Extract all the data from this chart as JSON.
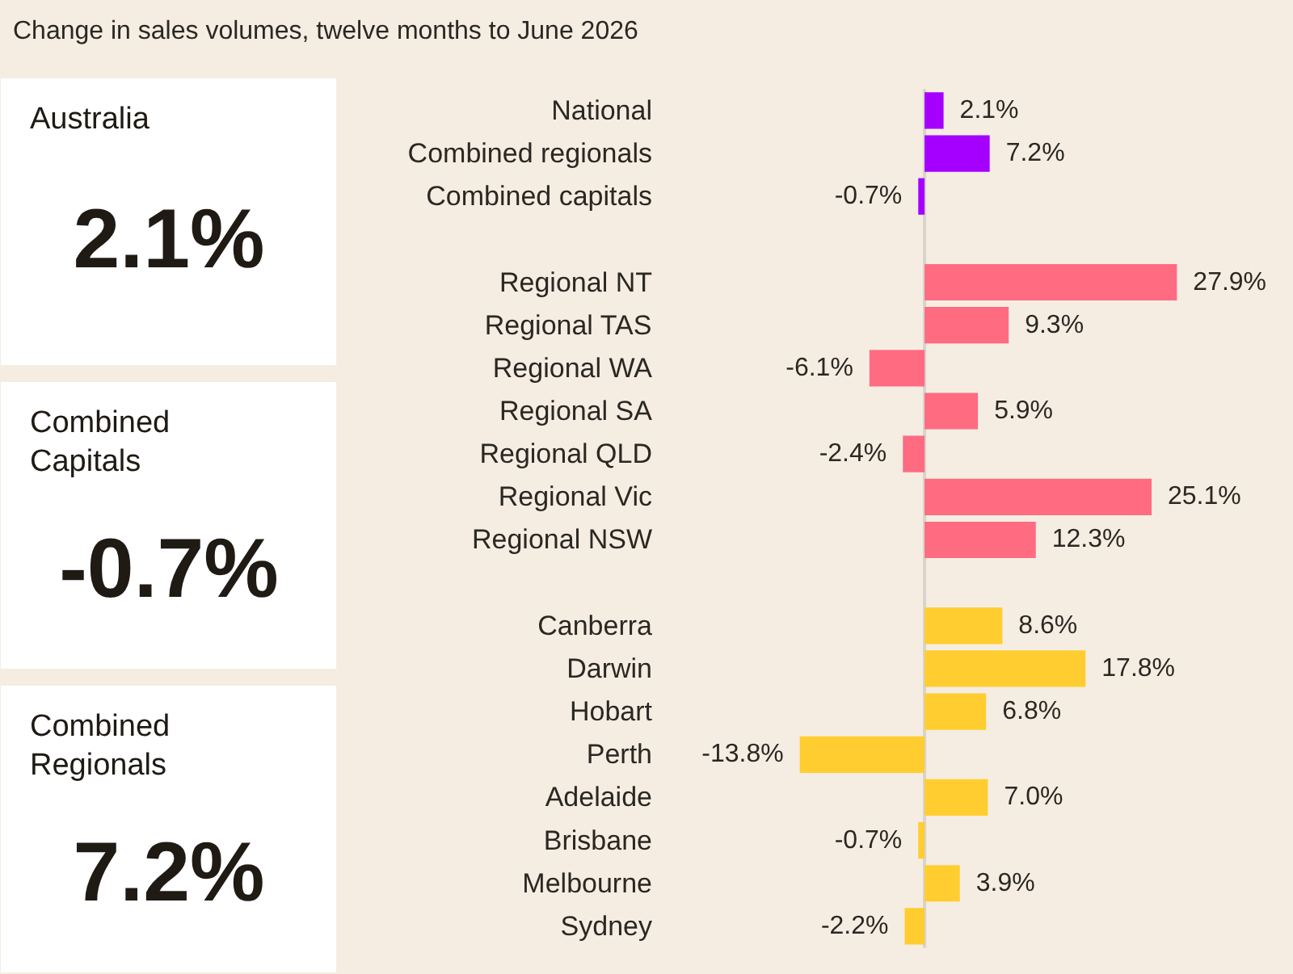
{
  "chart_data": [
    {
      "type": "bar",
      "orientation": "horizontal",
      "title": "Change in sales volumes, twelve months to June 2026",
      "categories": [
        "National",
        "Combined regionals",
        "Combined capitals",
        null,
        "Regional NT",
        "Regional TAS",
        "Regional WA",
        "Regional SA",
        "Regional QLD",
        "Regional Vic",
        "Regional NSW",
        null,
        "Canberra",
        "Darwin",
        "Hobart",
        "Perth",
        "Adelaide",
        "Brisbane",
        "Melbourne",
        "Sydney"
      ],
      "values": [
        2.1,
        7.2,
        -0.7,
        null,
        27.9,
        9.3,
        -6.1,
        5.9,
        -2.4,
        25.1,
        12.3,
        null,
        8.6,
        17.8,
        6.8,
        -13.8,
        7.0,
        -0.7,
        3.9,
        -2.2
      ],
      "colors": [
        "#a500ff",
        "#a500ff",
        "#a500ff",
        null,
        "#ff6b81",
        "#ff6b81",
        "#ff6b81",
        "#ff6b81",
        "#ff6b81",
        "#ff6b81",
        "#ff6b81",
        null,
        "#ffcd2f",
        "#ffcd2f",
        "#ffcd2f",
        "#ffcd2f",
        "#ffcd2f",
        "#ffcd2f",
        "#ffcd2f",
        "#ffcd2f"
      ],
      "value_labels": [
        "2.1%",
        "7.2%",
        "-0.7%",
        null,
        "27.9%",
        "9.3%",
        "-6.1%",
        "5.9%",
        "-2.4%",
        "25.1%",
        "12.3%",
        null,
        "8.6%",
        "17.8%",
        "6.8%",
        "-13.8%",
        "7.0%",
        "-0.7%",
        "3.9%",
        "-2.2%"
      ],
      "tick_labels": "y",
      "ref_lines": [
        {
          "axis": "x",
          "value": 0,
          "color": "#d9d3ca"
        }
      ]
    },
    {
      "type": "other",
      "title": "Australia",
      "annotations": [
        "2.1%"
      ]
    },
    {
      "type": "other",
      "title": "Combined Capitals",
      "annotations": [
        "-0.7%"
      ]
    },
    {
      "type": "other",
      "title": "Combined Regionals",
      "annotations": [
        "7.2%"
      ]
    }
  ]
}
